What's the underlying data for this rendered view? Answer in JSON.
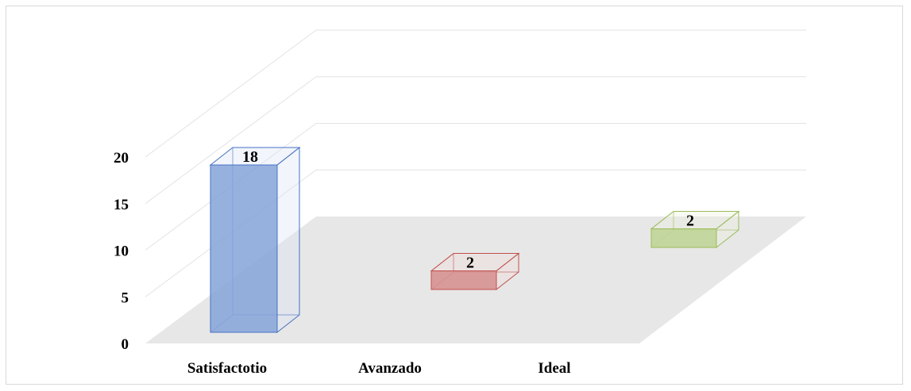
{
  "chart_data": {
    "type": "bar",
    "style": "3d-column",
    "categories": [
      "Satisfactotio",
      "Avanzado",
      "Ideal"
    ],
    "values": [
      18,
      2,
      2
    ],
    "data_labels": [
      "18",
      "2",
      "2"
    ],
    "colors": [
      "#4472c4",
      "#c0504d",
      "#9bbb59"
    ],
    "y_ticks": [
      "0",
      "5",
      "10",
      "15",
      "20"
    ],
    "ylim": [
      0,
      20
    ],
    "grid": true,
    "legend": "none",
    "title": "",
    "xlabel": "",
    "ylabel": ""
  }
}
